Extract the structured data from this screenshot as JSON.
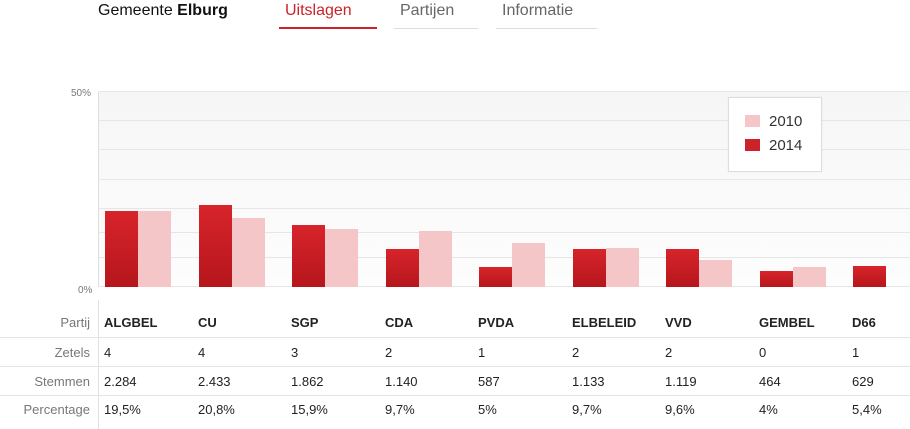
{
  "header": {
    "title_prefix": "Gemeente",
    "title_name": "Elburg",
    "tabs": [
      {
        "label": "Uitslagen",
        "active": true
      },
      {
        "label": "Partijen",
        "active": false
      },
      {
        "label": "Informatie",
        "active": false
      }
    ]
  },
  "colors": {
    "accent": "#cc2229",
    "bar_2014": "#cc2229",
    "bar_2010": "#f5c6c7"
  },
  "chart_data": {
    "type": "bar",
    "categories": [
      "ALGBEL",
      "CU",
      "SGP",
      "CDA",
      "PVDA",
      "ELBELEID",
      "VVD",
      "GEMBEL",
      "D66"
    ],
    "series": [
      {
        "name": "2014",
        "values": [
          19.5,
          20.8,
          15.9,
          9.7,
          5.0,
          9.7,
          9.6,
          4.0,
          5.4
        ]
      },
      {
        "name": "2010",
        "values": [
          19.5,
          17.5,
          14.8,
          14.2,
          11.2,
          10.0,
          6.8,
          5.2,
          null
        ]
      }
    ],
    "ylim": [
      0,
      50
    ],
    "yticks": [
      "50%",
      "0%"
    ],
    "legend_position": "top-right",
    "grid": true
  },
  "table": {
    "row_labels": {
      "party": "Partij",
      "seats": "Zetels",
      "votes": "Stemmen",
      "percentage": "Percentage"
    },
    "parties": [
      {
        "name": "ALGBEL",
        "seats": "4",
        "votes": "2.284",
        "percentage": "19,5%"
      },
      {
        "name": "CU",
        "seats": "4",
        "votes": "2.433",
        "percentage": "20,8%"
      },
      {
        "name": "SGP",
        "seats": "3",
        "votes": "1.862",
        "percentage": "15,9%"
      },
      {
        "name": "CDA",
        "seats": "2",
        "votes": "1.140",
        "percentage": "9,7%"
      },
      {
        "name": "PVDA",
        "seats": "1",
        "votes": "587",
        "percentage": "5%"
      },
      {
        "name": "ELBELEID",
        "seats": "2",
        "votes": "1.133",
        "percentage": "9,7%"
      },
      {
        "name": "VVD",
        "seats": "2",
        "votes": "1.119",
        "percentage": "9,6%"
      },
      {
        "name": "GEMBEL",
        "seats": "0",
        "votes": "464",
        "percentage": "4%"
      },
      {
        "name": "D66",
        "seats": "1",
        "votes": "629",
        "percentage": "5,4%"
      }
    ]
  }
}
